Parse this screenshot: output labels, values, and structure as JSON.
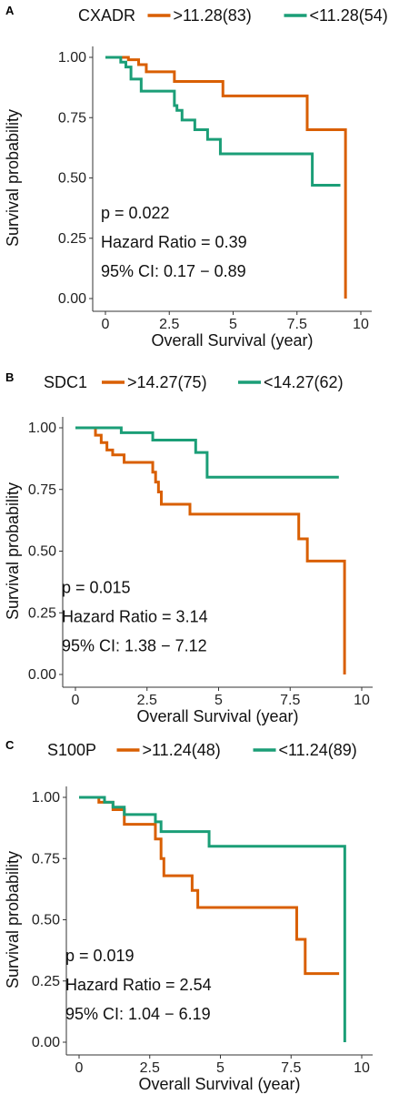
{
  "chart_data": [
    {
      "type": "line",
      "panel": "A",
      "gene": "CXADR",
      "xlabel": "Overall Survival (year)",
      "ylabel": "Survival probability",
      "xlim": [
        0,
        10
      ],
      "ylim": [
        0,
        1
      ],
      "xticks": [
        "0",
        "2.5",
        "5",
        "7.5",
        "10"
      ],
      "yticks": [
        "0.00",
        "0.25",
        "0.50",
        "0.75",
        "1.00"
      ],
      "annotations": [
        "p = 0.022",
        "Hazard Ratio = 0.39",
        "95% CI: 0.17 − 0.89"
      ],
      "series": [
        {
          "name": ">11.28(83)",
          "color": "#d95f02",
          "x": [
            0,
            0.9,
            1.3,
            1.6,
            2.7,
            4.6,
            7.9,
            9.4
          ],
          "y": [
            1.0,
            0.99,
            0.97,
            0.94,
            0.9,
            0.84,
            0.7,
            0.0
          ],
          "end_x": 9.4
        },
        {
          "name": "<11.28(54)",
          "color": "#1b9e77",
          "x": [
            0,
            0.6,
            0.8,
            1.0,
            1.4,
            2.7,
            2.8,
            3.0,
            3.5,
            4.0,
            4.5,
            8.1
          ],
          "y": [
            1.0,
            0.98,
            0.96,
            0.91,
            0.86,
            0.8,
            0.78,
            0.74,
            0.7,
            0.66,
            0.6,
            0.47
          ],
          "end_x": 9.2
        }
      ]
    },
    {
      "type": "line",
      "panel": "B",
      "gene": "SDC1",
      "xlabel": "Overall Survival (year)",
      "ylabel": "Survival probability",
      "xlim": [
        0,
        10
      ],
      "ylim": [
        0,
        1
      ],
      "xticks": [
        "0",
        "2.5",
        "5",
        "7.5",
        "10"
      ],
      "yticks": [
        "0.00",
        "0.25",
        "0.50",
        "0.75",
        "1.00"
      ],
      "annotations": [
        "p = 0.015",
        "Hazard Ratio = 3.14",
        "95% CI: 1.38 − 7.12"
      ],
      "series": [
        {
          "name": ">14.27(75)",
          "color": "#d95f02",
          "x": [
            0,
            0.7,
            0.9,
            1.1,
            1.3,
            1.7,
            2.7,
            2.8,
            2.9,
            3.0,
            4.0,
            7.8,
            8.1,
            9.4
          ],
          "y": [
            1.0,
            0.97,
            0.94,
            0.91,
            0.89,
            0.86,
            0.82,
            0.78,
            0.74,
            0.69,
            0.65,
            0.55,
            0.46,
            0.0
          ],
          "end_x": 9.4
        },
        {
          "name": "<14.27(62)",
          "color": "#1b9e77",
          "x": [
            0,
            1.6,
            2.7,
            4.2,
            4.6
          ],
          "y": [
            1.0,
            0.98,
            0.95,
            0.9,
            0.8
          ],
          "end_x": 9.2
        }
      ]
    },
    {
      "type": "line",
      "panel": "C",
      "gene": "S100P",
      "xlabel": "Overall Survival (year)",
      "ylabel": "Survival probability",
      "xlim": [
        0,
        10
      ],
      "ylim": [
        0,
        1
      ],
      "xticks": [
        "0",
        "2.5",
        "5",
        "7.5",
        "10"
      ],
      "yticks": [
        "0.00",
        "0.25",
        "0.50",
        "0.75",
        "1.00"
      ],
      "annotations": [
        "p = 0.019",
        "Hazard Ratio = 2.54",
        "95% CI: 1.04 − 6.19"
      ],
      "series": [
        {
          "name": ">11.24(48)",
          "color": "#d95f02",
          "x": [
            0,
            0.7,
            1.2,
            1.6,
            2.7,
            2.9,
            3.0,
            4.0,
            4.2,
            7.7,
            8.0
          ],
          "y": [
            1.0,
            0.98,
            0.95,
            0.89,
            0.83,
            0.75,
            0.68,
            0.62,
            0.55,
            0.42,
            0.28
          ],
          "end_x": 9.2
        },
        {
          "name": "<11.24(89)",
          "color": "#1b9e77",
          "x": [
            0,
            0.9,
            1.2,
            1.6,
            2.7,
            2.9,
            4.6,
            9.4
          ],
          "y": [
            1.0,
            0.98,
            0.96,
            0.93,
            0.9,
            0.86,
            0.8,
            0.0
          ],
          "end_x": 9.4
        }
      ]
    }
  ]
}
